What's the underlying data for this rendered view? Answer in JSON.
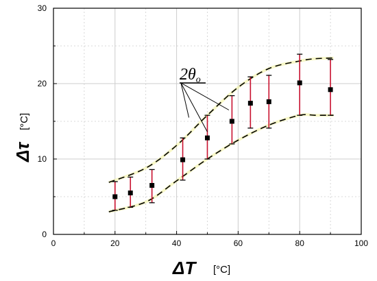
{
  "chart_data": {
    "type": "scatter",
    "xlabel": {
      "symbol": "ΔT",
      "unit": "[°C]"
    },
    "ylabel": {
      "symbol": "Δτ",
      "unit": "[°C]"
    },
    "xlim": [
      0,
      100
    ],
    "ylim": [
      0,
      30
    ],
    "xticks": [
      "0",
      "20",
      "40",
      "60",
      "80",
      "100"
    ],
    "yticks": [
      "0",
      "10",
      "20",
      "30"
    ],
    "grid": true,
    "points": [
      {
        "x": 20,
        "y": 5.0,
        "err_low": 3.2,
        "err_high": 7.0
      },
      {
        "x": 25,
        "y": 5.5,
        "err_low": 3.6,
        "err_high": 7.6
      },
      {
        "x": 32,
        "y": 6.5,
        "err_low": 4.2,
        "err_high": 8.6
      },
      {
        "x": 42,
        "y": 9.9,
        "err_low": 7.2,
        "err_high": 12.8
      },
      {
        "x": 50,
        "y": 12.8,
        "err_low": 10.0,
        "err_high": 15.8
      },
      {
        "x": 58,
        "y": 15.0,
        "err_low": 12.0,
        "err_high": 18.4
      },
      {
        "x": 64,
        "y": 17.4,
        "err_low": 14.1,
        "err_high": 20.9
      },
      {
        "x": 70,
        "y": 17.6,
        "err_low": 14.1,
        "err_high": 21.1
      },
      {
        "x": 80,
        "y": 20.1,
        "err_low": 15.8,
        "err_high": 23.9
      },
      {
        "x": 90,
        "y": 19.2,
        "err_low": 15.8,
        "err_high": 23.2
      }
    ],
    "upper_bound": [
      [
        18,
        6.9
      ],
      [
        30,
        8.8
      ],
      [
        40,
        11.8
      ],
      [
        50,
        15.8
      ],
      [
        60,
        19.5
      ],
      [
        70,
        22.0
      ],
      [
        80,
        23.0
      ],
      [
        85,
        23.3
      ],
      [
        91,
        23.4
      ]
    ],
    "lower_bound": [
      [
        18,
        3.0
      ],
      [
        30,
        4.3
      ],
      [
        40,
        7.1
      ],
      [
        50,
        10.0
      ],
      [
        60,
        12.5
      ],
      [
        70,
        14.5
      ],
      [
        80,
        15.8
      ],
      [
        85,
        15.8
      ],
      [
        91,
        15.8
      ]
    ],
    "annotation": {
      "label": "2θ",
      "subscript": "o"
    },
    "colors": {
      "marker": "#000000",
      "error_bar": "#c8102e",
      "error_cap": "#000000",
      "bound": "#000000",
      "grid": "#cccccc"
    }
  }
}
